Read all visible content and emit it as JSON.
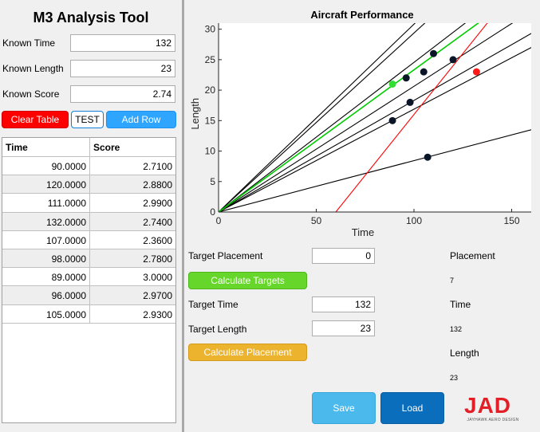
{
  "app": {
    "title": "M3 Analysis Tool"
  },
  "inputs": {
    "known_time": {
      "label": "Known Time",
      "value": "132"
    },
    "known_length": {
      "label": "Known Length",
      "value": "23"
    },
    "known_score": {
      "label": "Known Score",
      "value": "2.74"
    }
  },
  "buttons": {
    "clear_table": "Clear Table",
    "test": "TEST",
    "add_row": "Add Row",
    "calculate_targets": "Calculate Targets",
    "calculate_placement": "Calculate Placement",
    "save": "Save",
    "load": "Load"
  },
  "table": {
    "headers": [
      "Time",
      "Score"
    ],
    "rows": [
      [
        "90.0000",
        "2.7100"
      ],
      [
        "120.0000",
        "2.8800"
      ],
      [
        "111.0000",
        "2.9900"
      ],
      [
        "132.0000",
        "2.7400"
      ],
      [
        "107.0000",
        "2.3600"
      ],
      [
        "98.0000",
        "2.7800"
      ],
      [
        "89.0000",
        "3.0000"
      ],
      [
        "96.0000",
        "2.9700"
      ],
      [
        "105.0000",
        "2.9300"
      ]
    ]
  },
  "targets": {
    "target_placement": {
      "label": "Target Placement",
      "value": "0"
    },
    "target_time": {
      "label": "Target Time",
      "value": "132"
    },
    "target_length": {
      "label": "Target Length",
      "value": "23"
    }
  },
  "outputs": {
    "placement": {
      "label": "Placement",
      "value": "7"
    },
    "time": {
      "label": "Time",
      "value": "132"
    },
    "length": {
      "label": "Length",
      "value": "23"
    }
  },
  "logo": {
    "main": "JAD",
    "sub": "JAYHAWK AERO DESIGN"
  },
  "colors": {
    "black_line": "#000000",
    "green_line": "#00cc00",
    "red_line": "#ff0000",
    "point_dark": "#0a1628",
    "point_green": "#33dd33",
    "point_red": "#ff1a1a"
  },
  "chart_data": {
    "type": "line",
    "title": "Aircraft Performance",
    "xlabel": "Time",
    "ylabel": "Length",
    "xlim": [
      0,
      160
    ],
    "ylim": [
      0,
      31
    ],
    "xticks": [
      0,
      50,
      100,
      150
    ],
    "yticks": [
      0,
      5,
      10,
      15,
      20,
      25,
      30
    ],
    "grid": false,
    "series": [
      {
        "kind": "ray",
        "color": "#000000",
        "x": [
          0,
          160
        ],
        "y": [
          0,
          49.33
        ]
      },
      {
        "kind": "ray",
        "color": "#000000",
        "x": [
          0,
          160
        ],
        "y": [
          0,
          47.0
        ]
      },
      {
        "kind": "ray",
        "color": "#000000",
        "x": [
          0,
          160
        ],
        "y": [
          0,
          39.3
        ]
      },
      {
        "kind": "ray",
        "color": "#000000",
        "x": [
          0,
          160
        ],
        "y": [
          0,
          33.0
        ]
      },
      {
        "kind": "ray",
        "color": "#000000",
        "x": [
          0,
          160
        ],
        "y": [
          0,
          29.3
        ]
      },
      {
        "kind": "ray",
        "color": "#000000",
        "x": [
          0,
          160
        ],
        "y": [
          0,
          27.0
        ]
      },
      {
        "kind": "ray",
        "color": "#000000",
        "x": [
          0,
          160
        ],
        "y": [
          0,
          13.5
        ]
      },
      {
        "kind": "ray",
        "color": "#00cc00",
        "x": [
          0,
          160
        ],
        "y": [
          0,
          37.33
        ]
      },
      {
        "kind": "ray",
        "color": "#ff0000",
        "x": [
          60,
          160
        ],
        "y": [
          0,
          40.0
        ]
      }
    ],
    "points": [
      {
        "x": 110,
        "y": 26,
        "color": "#0a1628"
      },
      {
        "x": 120,
        "y": 25,
        "color": "#0a1628"
      },
      {
        "x": 105,
        "y": 23,
        "color": "#0a1628"
      },
      {
        "x": 96,
        "y": 22,
        "color": "#0a1628"
      },
      {
        "x": 98,
        "y": 18,
        "color": "#0a1628"
      },
      {
        "x": 89,
        "y": 15,
        "color": "#0a1628"
      },
      {
        "x": 107,
        "y": 9,
        "color": "#0a1628"
      },
      {
        "x": 89,
        "y": 21,
        "color": "#33dd33"
      },
      {
        "x": 132,
        "y": 23,
        "color": "#ff1a1a"
      }
    ]
  }
}
